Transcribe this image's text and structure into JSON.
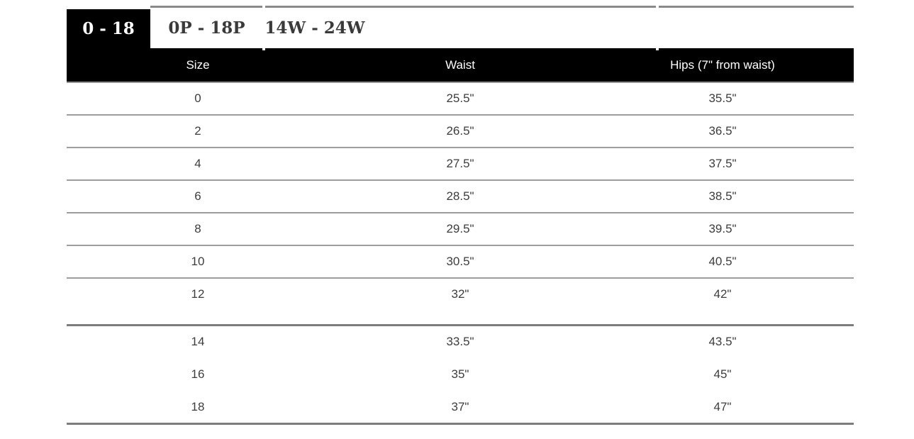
{
  "tabs": [
    {
      "label": "0 - 18",
      "active": true
    },
    {
      "label": "0P - 18P",
      "active": false
    },
    {
      "label": "14W - 24W",
      "active": false
    }
  ],
  "table": {
    "columns": [
      "Size",
      "Waist",
      "Hips (7\" from waist)"
    ],
    "rows": [
      {
        "size": "0",
        "waist": "25.5\"",
        "hips": "35.5\"",
        "border": "normal",
        "tall": false
      },
      {
        "size": "2",
        "waist": "26.5\"",
        "hips": "36.5\"",
        "border": "normal",
        "tall": false
      },
      {
        "size": "4",
        "waist": "27.5\"",
        "hips": "37.5\"",
        "border": "normal",
        "tall": false
      },
      {
        "size": "6",
        "waist": "28.5\"",
        "hips": "38.5\"",
        "border": "normal",
        "tall": false
      },
      {
        "size": "8",
        "waist": "29.5\"",
        "hips": "39.5\"",
        "border": "normal",
        "tall": false
      },
      {
        "size": "10",
        "waist": "30.5\"",
        "hips": "40.5\"",
        "border": "normal",
        "tall": false
      },
      {
        "size": "12",
        "waist": "32\"",
        "hips": "42\"",
        "border": "thick",
        "tall": true
      },
      {
        "size": "14",
        "waist": "33.5\"",
        "hips": "43.5\"",
        "border": "none",
        "tall": false
      },
      {
        "size": "16",
        "waist": "35\"",
        "hips": "45\"",
        "border": "none",
        "tall": false
      },
      {
        "size": "18",
        "waist": "37\"",
        "hips": "47\"",
        "border": "thick",
        "tall": false
      }
    ]
  },
  "colors": {
    "header_bg": "#000000",
    "header_text": "#ffffff",
    "active_tab_bg": "#000000",
    "active_tab_text": "#ffffff",
    "inactive_tab_text": "#3a3a3a",
    "body_text": "#3d3d3d",
    "row_border": "#9d9d9d",
    "thick_border": "#7d7d7d",
    "top_line": "#8a8a8a"
  }
}
